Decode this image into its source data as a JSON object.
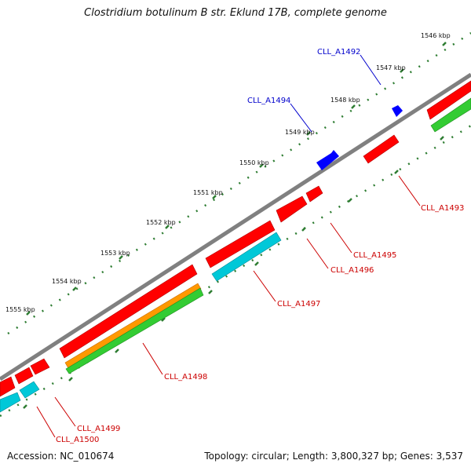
{
  "title": "Clostridium botulinum B str. Eklund 17B, complete genome",
  "accession": "Accession: NC_010674",
  "summary": "Topology: circular; Length: 3,800,327 bp; Genes: 3,537",
  "colors": {
    "backbone": "#808080",
    "cds": "#ff0000",
    "gene": "#0000ff",
    "cyan": "#00c8d8",
    "orange": "#ff9900",
    "green": "#33cc33",
    "tick": "#2e7d32",
    "label_red": "#cc0000",
    "label_blue": "#0000cc"
  },
  "ticks": [
    "1546 kbp",
    "1547 kbp",
    "1548 kbp",
    "1549 kbp",
    "1550 kbp",
    "1551 kbp",
    "1552 kbp",
    "1553 kbp",
    "1554 kbp",
    "1555 kbp"
  ],
  "features": [
    {
      "label": "CLL_A1492",
      "track": "blue"
    },
    {
      "label": "CLL_A1494",
      "track": "blue"
    },
    {
      "label": "CLL_A1493",
      "track": "red"
    },
    {
      "label": "CLL_A1495",
      "track": "red"
    },
    {
      "label": "CLL_A1496",
      "track": "red"
    },
    {
      "label": "CLL_A1497",
      "track": "red"
    },
    {
      "label": "CLL_A1498",
      "track": "red"
    },
    {
      "label": "CLL_A1499",
      "track": "red"
    },
    {
      "label": "CLL_A1500",
      "track": "red"
    }
  ]
}
